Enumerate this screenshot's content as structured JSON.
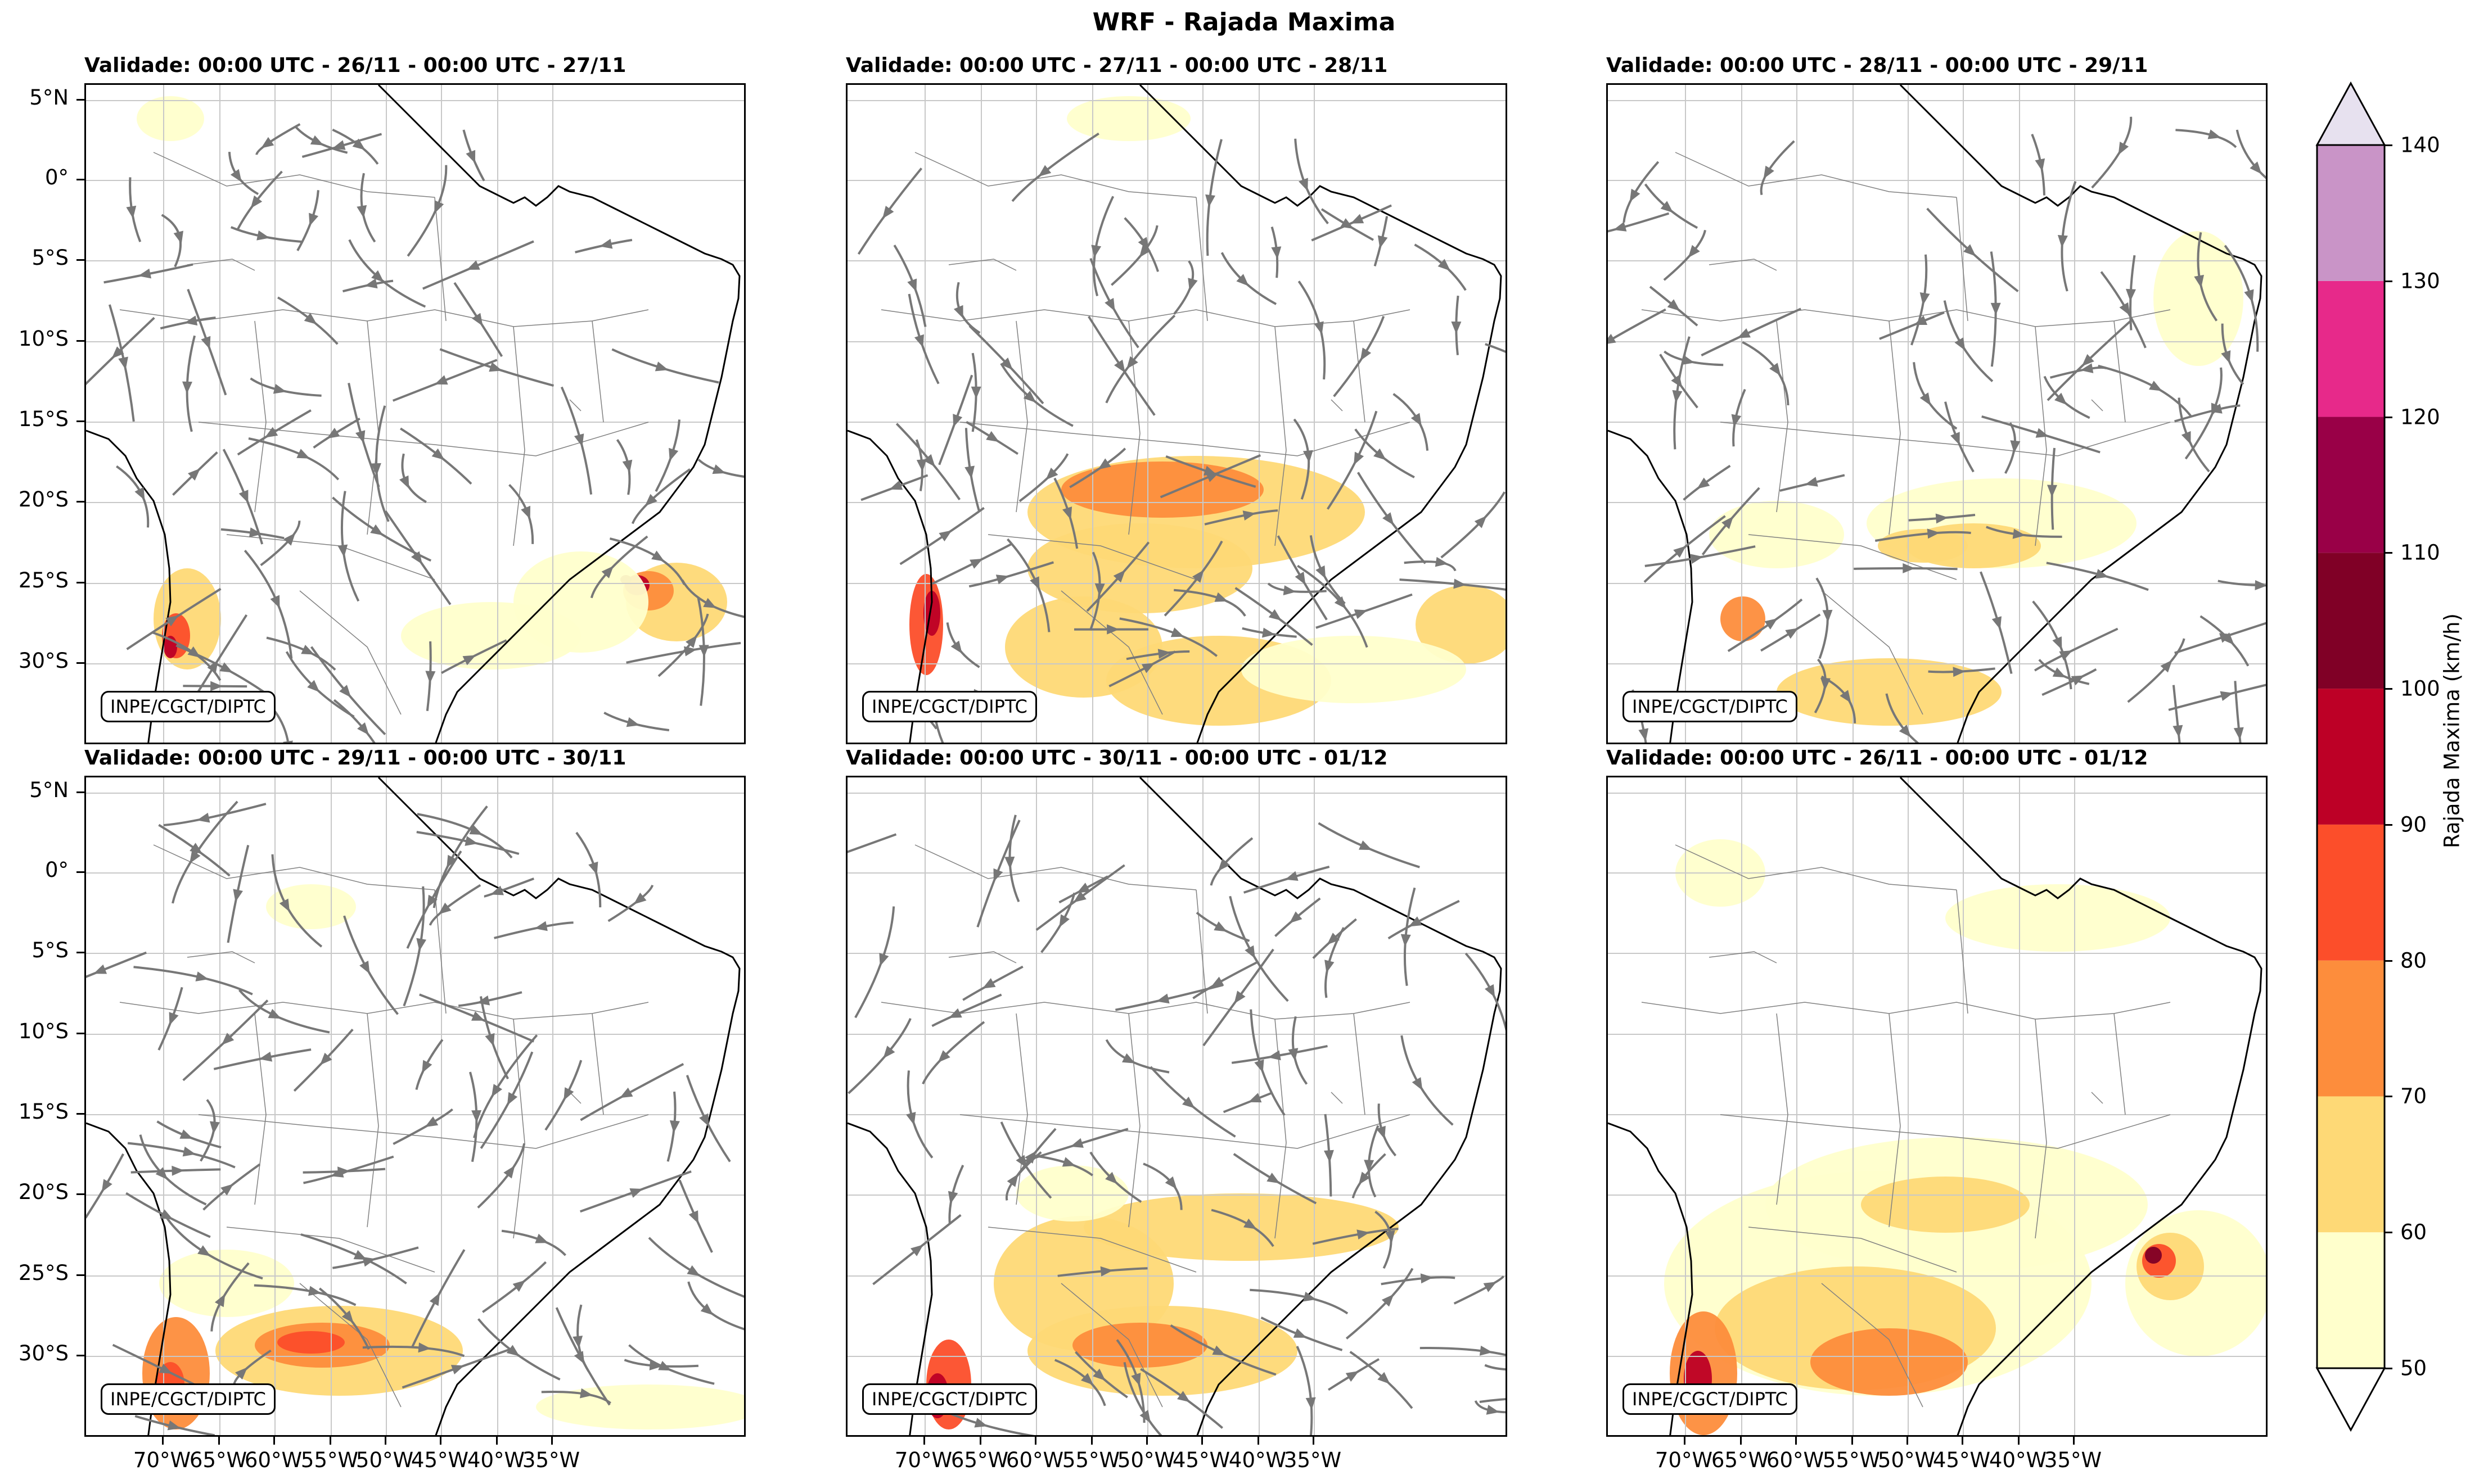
{
  "title": "WRF - Rajada Maxima",
  "credit": "INPE/CGCT/DIPTC",
  "panels": [
    {
      "title": "Validade: 00:00 UTC - 26/11 - 00:00 UTC - 27/11"
    },
    {
      "title": "Validade: 00:00 UTC - 27/11 - 00:00 UTC - 28/11"
    },
    {
      "title": "Validade: 00:00 UTC - 28/11 - 00:00 UTC - 29/11"
    },
    {
      "title": "Validade: 00:00 UTC - 29/11 - 00:00 UTC - 30/11"
    },
    {
      "title": "Validade: 00:00 UTC - 30/11 - 00:00 UTC - 01/12"
    },
    {
      "title": "Validade: 00:00 UTC - 26/11 - 00:00 UTC - 01/12"
    }
  ],
  "lat_labels": [
    "5°N",
    "0°",
    "5°S",
    "10°S",
    "15°S",
    "20°S",
    "25°S",
    "30°S"
  ],
  "lon_labels": [
    "70°W",
    "65°W",
    "60°W",
    "55°W",
    "50°W",
    "45°W",
    "40°W",
    "35°W"
  ],
  "colorbar": {
    "label": "Rajada Maxima (km/h)",
    "ticks": [
      "50",
      "60",
      "70",
      "80",
      "90",
      "100",
      "110",
      "120",
      "130",
      "140"
    ],
    "colors": [
      "#ffffcc",
      "#fed976",
      "#fd8d3c",
      "#fc4e2a",
      "#bd0026",
      "#800026",
      "#990047",
      "#e7298a",
      "#c994c7",
      "#e7e1ef"
    ]
  }
}
